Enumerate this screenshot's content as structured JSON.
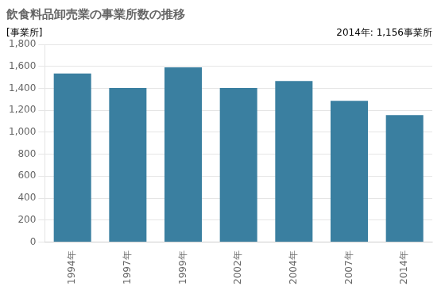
{
  "chart_data": {
    "type": "bar",
    "title": "飲食料品卸売業の事業所数の推移",
    "ylabel": "[事業所]",
    "annotation": "2014年: 1,156事業所",
    "categories": [
      "1994年",
      "1997年",
      "1999年",
      "2002年",
      "2004年",
      "2007年",
      "2014年"
    ],
    "values": [
      1534,
      1403,
      1591,
      1404,
      1467,
      1285,
      1156
    ],
    "color": "#3a7fa0",
    "ylim": [
      0,
      1800
    ],
    "yticks": [
      0,
      200,
      400,
      600,
      800,
      {
        "value": 1000,
        "label": "1,000"
      },
      {
        "value": 1200,
        "label": "1,200"
      },
      {
        "value": 1400,
        "label": "1,400"
      },
      {
        "value": 1600,
        "label": "1,600"
      },
      {
        "value": 1800,
        "label": "1,800"
      }
    ],
    "grid": true
  }
}
